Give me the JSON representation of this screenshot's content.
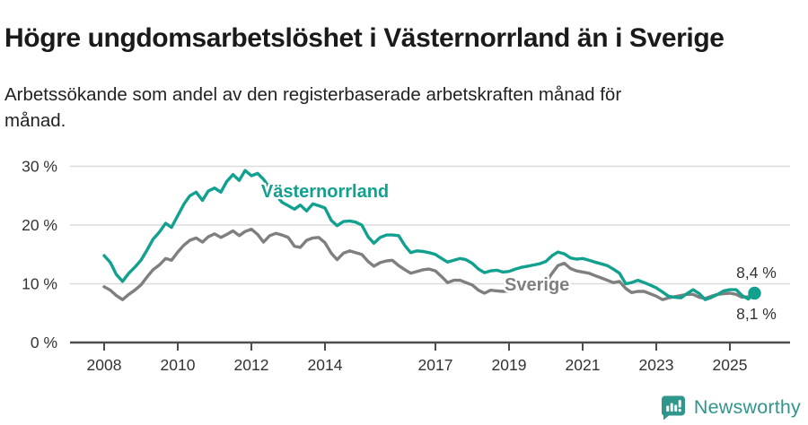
{
  "chart_data": {
    "type": "line",
    "title": "Högre ungdomsarbetslöshet i Västernorrland än i Sverige",
    "subtitle": "Arbetssökande som andel av den registerbaserade arbetskraften månad för månad.",
    "x_axis": {
      "ticks": [
        2008,
        2010,
        2012,
        2014,
        2017,
        2019,
        2021,
        2023,
        2025
      ],
      "labels": [
        "2008",
        "2010",
        "2012",
        "2014",
        "2017",
        "2019",
        "2021",
        "2023",
        "2025"
      ],
      "range_years": [
        2007.1,
        2026.1
      ]
    },
    "y_axis": {
      "ticks": [
        0,
        10,
        20,
        30
      ],
      "labels": [
        "0 %",
        "10 %",
        "20 %",
        "30 %"
      ],
      "range": [
        0,
        32.7
      ],
      "grid": true
    },
    "legend": "inline-line-labels",
    "colors": {
      "grid": "#dcdcdc",
      "axis": "#4d4d4d",
      "tick_text": "#333333",
      "end_label_text": "#333333"
    },
    "series": [
      {
        "name": "Sverige",
        "color": "#7f7f7f",
        "end_label": "8,1 %",
        "end_label_side": "below",
        "end_dot": false,
        "label_at": [
          2019.76,
          9.9
        ],
        "points": [
          [
            2008.0,
            9.5
          ],
          [
            2008.17,
            8.9
          ],
          [
            2008.33,
            8.0
          ],
          [
            2008.5,
            7.3
          ],
          [
            2008.67,
            8.2
          ],
          [
            2008.83,
            8.9
          ],
          [
            2009.0,
            9.8
          ],
          [
            2009.17,
            11.2
          ],
          [
            2009.33,
            12.4
          ],
          [
            2009.5,
            13.2
          ],
          [
            2009.67,
            14.3
          ],
          [
            2009.83,
            14.0
          ],
          [
            2010.0,
            15.4
          ],
          [
            2010.17,
            16.6
          ],
          [
            2010.33,
            17.4
          ],
          [
            2010.5,
            17.8
          ],
          [
            2010.67,
            17.1
          ],
          [
            2010.83,
            18.0
          ],
          [
            2011.0,
            18.5
          ],
          [
            2011.17,
            17.9
          ],
          [
            2011.33,
            18.4
          ],
          [
            2011.5,
            19.0
          ],
          [
            2011.67,
            18.2
          ],
          [
            2011.83,
            18.9
          ],
          [
            2012.0,
            19.3
          ],
          [
            2012.17,
            18.4
          ],
          [
            2012.33,
            17.1
          ],
          [
            2012.5,
            18.2
          ],
          [
            2012.67,
            18.6
          ],
          [
            2012.83,
            18.3
          ],
          [
            2013.0,
            17.9
          ],
          [
            2013.17,
            16.4
          ],
          [
            2013.33,
            16.2
          ],
          [
            2013.5,
            17.4
          ],
          [
            2013.67,
            17.8
          ],
          [
            2013.83,
            17.9
          ],
          [
            2014.0,
            17.0
          ],
          [
            2014.17,
            15.2
          ],
          [
            2014.33,
            14.1
          ],
          [
            2014.5,
            15.2
          ],
          [
            2014.67,
            15.6
          ],
          [
            2014.83,
            15.3
          ],
          [
            2015.0,
            15.0
          ],
          [
            2015.17,
            13.8
          ],
          [
            2015.33,
            13.0
          ],
          [
            2015.5,
            13.6
          ],
          [
            2015.67,
            13.9
          ],
          [
            2015.83,
            14.0
          ],
          [
            2016.0,
            13.1
          ],
          [
            2016.17,
            12.4
          ],
          [
            2016.33,
            11.8
          ],
          [
            2016.5,
            12.1
          ],
          [
            2016.67,
            12.4
          ],
          [
            2016.83,
            12.5
          ],
          [
            2017.0,
            12.2
          ],
          [
            2017.17,
            11.2
          ],
          [
            2017.33,
            10.2
          ],
          [
            2017.5,
            10.6
          ],
          [
            2017.67,
            10.6
          ],
          [
            2017.83,
            10.2
          ],
          [
            2018.0,
            9.8
          ],
          [
            2018.17,
            8.9
          ],
          [
            2018.33,
            8.4
          ],
          [
            2018.5,
            8.9
          ],
          [
            2018.67,
            8.8
          ],
          [
            2018.83,
            8.7
          ],
          [
            2019.0,
            8.8
          ],
          [
            2019.17,
            9.1
          ],
          [
            2019.33,
            9.3
          ],
          [
            2019.5,
            9.5
          ],
          [
            2019.67,
            9.6
          ],
          [
            2019.83,
            9.8
          ],
          [
            2020.0,
            10.2
          ],
          [
            2020.17,
            11.8
          ],
          [
            2020.33,
            13.1
          ],
          [
            2020.5,
            13.5
          ],
          [
            2020.67,
            12.6
          ],
          [
            2020.83,
            12.2
          ],
          [
            2021.0,
            12.0
          ],
          [
            2021.17,
            11.8
          ],
          [
            2021.33,
            11.4
          ],
          [
            2021.5,
            11.0
          ],
          [
            2021.67,
            10.6
          ],
          [
            2021.83,
            10.2
          ],
          [
            2022.0,
            10.4
          ],
          [
            2022.17,
            9.2
          ],
          [
            2022.33,
            8.5
          ],
          [
            2022.5,
            8.7
          ],
          [
            2022.67,
            8.7
          ],
          [
            2022.83,
            8.3
          ],
          [
            2023.0,
            7.9
          ],
          [
            2023.17,
            7.3
          ],
          [
            2023.33,
            7.6
          ],
          [
            2023.5,
            7.8
          ],
          [
            2023.67,
            8.0
          ],
          [
            2023.83,
            8.2
          ],
          [
            2024.0,
            8.2
          ],
          [
            2024.17,
            7.7
          ],
          [
            2024.33,
            7.5
          ],
          [
            2024.5,
            7.9
          ],
          [
            2024.67,
            8.2
          ],
          [
            2024.83,
            8.3
          ],
          [
            2025.0,
            8.4
          ],
          [
            2025.17,
            8.2
          ],
          [
            2025.33,
            7.7
          ],
          [
            2025.5,
            7.8
          ],
          [
            2025.67,
            8.1
          ]
        ]
      },
      {
        "name": "Västernorrland",
        "color": "#12a08f",
        "end_label": "8,4 %",
        "end_label_side": "above",
        "end_dot": true,
        "label_at": [
          2014.0,
          25.8
        ],
        "points": [
          [
            2008.0,
            14.8
          ],
          [
            2008.17,
            13.6
          ],
          [
            2008.33,
            11.6
          ],
          [
            2008.5,
            10.4
          ],
          [
            2008.67,
            11.8
          ],
          [
            2008.83,
            12.8
          ],
          [
            2009.0,
            14.0
          ],
          [
            2009.17,
            15.8
          ],
          [
            2009.33,
            17.6
          ],
          [
            2009.5,
            18.8
          ],
          [
            2009.67,
            20.3
          ],
          [
            2009.83,
            19.6
          ],
          [
            2010.0,
            21.6
          ],
          [
            2010.17,
            23.6
          ],
          [
            2010.33,
            25.0
          ],
          [
            2010.5,
            25.6
          ],
          [
            2010.67,
            24.2
          ],
          [
            2010.83,
            25.8
          ],
          [
            2011.0,
            26.3
          ],
          [
            2011.17,
            25.6
          ],
          [
            2011.33,
            27.4
          ],
          [
            2011.5,
            28.6
          ],
          [
            2011.67,
            27.6
          ],
          [
            2011.83,
            29.3
          ],
          [
            2012.0,
            28.4
          ],
          [
            2012.17,
            28.8
          ],
          [
            2012.33,
            27.8
          ],
          [
            2012.5,
            26.3
          ],
          [
            2012.67,
            25.1
          ],
          [
            2012.83,
            23.9
          ],
          [
            2013.0,
            23.3
          ],
          [
            2013.17,
            22.7
          ],
          [
            2013.33,
            23.4
          ],
          [
            2013.5,
            22.4
          ],
          [
            2013.67,
            23.6
          ],
          [
            2013.83,
            23.3
          ],
          [
            2014.0,
            22.9
          ],
          [
            2014.17,
            20.8
          ],
          [
            2014.33,
            19.9
          ],
          [
            2014.5,
            20.6
          ],
          [
            2014.67,
            20.7
          ],
          [
            2014.83,
            20.5
          ],
          [
            2015.0,
            20.0
          ],
          [
            2015.17,
            18.0
          ],
          [
            2015.33,
            16.9
          ],
          [
            2015.5,
            17.9
          ],
          [
            2015.67,
            18.3
          ],
          [
            2015.83,
            18.3
          ],
          [
            2016.0,
            18.2
          ],
          [
            2016.17,
            16.5
          ],
          [
            2016.33,
            15.3
          ],
          [
            2016.5,
            15.6
          ],
          [
            2016.67,
            15.5
          ],
          [
            2016.83,
            15.3
          ],
          [
            2017.0,
            15.0
          ],
          [
            2017.17,
            14.3
          ],
          [
            2017.33,
            13.7
          ],
          [
            2017.5,
            14.0
          ],
          [
            2017.67,
            14.3
          ],
          [
            2017.83,
            14.1
          ],
          [
            2018.0,
            13.5
          ],
          [
            2018.17,
            12.5
          ],
          [
            2018.33,
            11.9
          ],
          [
            2018.5,
            12.2
          ],
          [
            2018.67,
            12.3
          ],
          [
            2018.83,
            12.0
          ],
          [
            2019.0,
            12.1
          ],
          [
            2019.17,
            12.5
          ],
          [
            2019.33,
            12.8
          ],
          [
            2019.5,
            13.0
          ],
          [
            2019.67,
            13.2
          ],
          [
            2019.83,
            13.4
          ],
          [
            2020.0,
            13.8
          ],
          [
            2020.17,
            14.8
          ],
          [
            2020.33,
            15.4
          ],
          [
            2020.5,
            15.1
          ],
          [
            2020.67,
            14.4
          ],
          [
            2020.83,
            14.2
          ],
          [
            2021.0,
            14.3
          ],
          [
            2021.17,
            14.0
          ],
          [
            2021.33,
            13.7
          ],
          [
            2021.5,
            13.4
          ],
          [
            2021.67,
            13.1
          ],
          [
            2021.83,
            12.5
          ],
          [
            2022.0,
            11.8
          ],
          [
            2022.17,
            10.0
          ],
          [
            2022.33,
            10.2
          ],
          [
            2022.5,
            10.6
          ],
          [
            2022.67,
            10.2
          ],
          [
            2022.83,
            9.8
          ],
          [
            2023.0,
            9.3
          ],
          [
            2023.17,
            8.6
          ],
          [
            2023.33,
            7.9
          ],
          [
            2023.5,
            7.7
          ],
          [
            2023.67,
            7.6
          ],
          [
            2023.83,
            8.3
          ],
          [
            2024.0,
            9.0
          ],
          [
            2024.17,
            8.3
          ],
          [
            2024.33,
            7.3
          ],
          [
            2024.5,
            7.7
          ],
          [
            2024.67,
            8.2
          ],
          [
            2024.83,
            8.8
          ],
          [
            2025.0,
            9.0
          ],
          [
            2025.17,
            9.0
          ],
          [
            2025.33,
            8.0
          ],
          [
            2025.5,
            7.4
          ],
          [
            2025.67,
            8.4
          ]
        ]
      }
    ]
  },
  "branding": {
    "name": "Newsworthy",
    "icon": "newsworthy-bar-chart-speech-bubble",
    "color": "#2f968c"
  }
}
